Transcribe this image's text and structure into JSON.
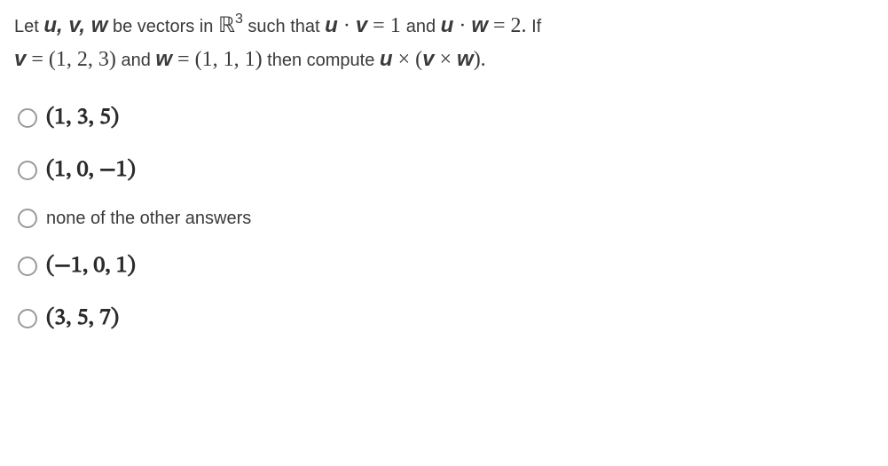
{
  "question": {
    "line1_a": "Let ",
    "u": "u",
    "comma_sp": ",  ",
    "v": "v",
    "w": "w",
    "line1_b": " be vectors in ",
    "R": "ℝ",
    "R_sup": "3",
    "line1_c": " such that ",
    "dot": " · ",
    "eq": " = ",
    "one": " 1 ",
    "and": " and ",
    "two": "2.",
    "if": " If",
    "line2_a": "",
    "v_val": "(1, 2, 3)",
    "and2": " and ",
    "w_val": "(1, 1, 1)",
    "line2_b": " then compute ",
    "cross": " × ",
    "open": "(",
    "close": ").",
    "period": "."
  },
  "options": [
    {
      "label": "(1, 3, 5)",
      "type": "math"
    },
    {
      "label": "(1, 0, −1)",
      "type": "math"
    },
    {
      "label": "none of the other answers",
      "type": "text"
    },
    {
      "label": "(−1, 0, 1)",
      "type": "math"
    },
    {
      "label": "(3, 5, 7)",
      "type": "math"
    }
  ],
  "style": {
    "bg": "#ffffff",
    "text_color": "#2b2b2b",
    "question_fontsize": 20,
    "option_math_fontsize": 26,
    "option_text_fontsize": 20,
    "radio_border": "#9a9a9a"
  }
}
